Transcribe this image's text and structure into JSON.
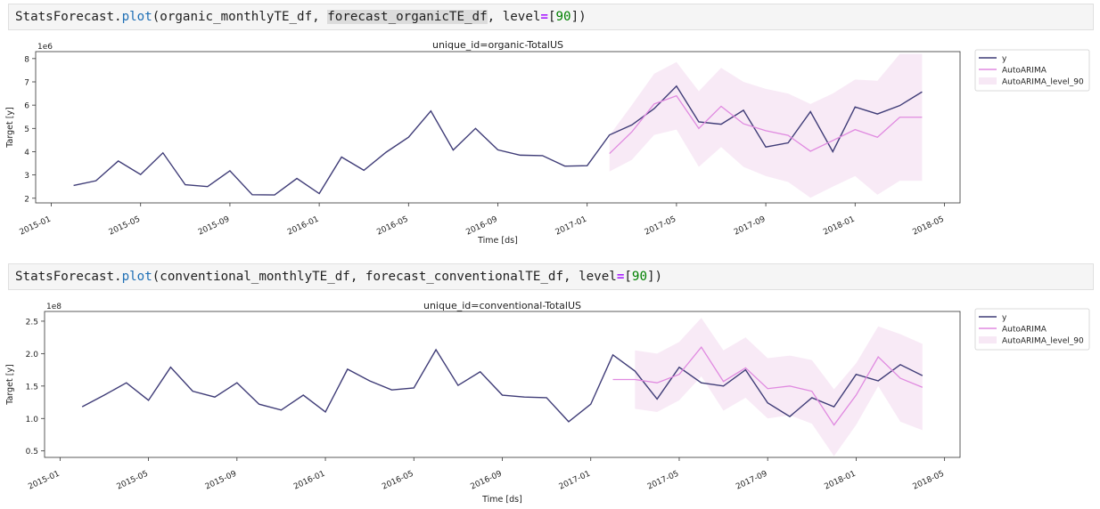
{
  "cells": [
    {
      "tokens": [
        {
          "t": "StatsForecast",
          "c": ""
        },
        {
          "t": ".",
          "c": ""
        },
        {
          "t": "plot",
          "c": "tok-fn"
        },
        {
          "t": "(organic_monthlyTE_df, ",
          "c": ""
        },
        {
          "t": "forecast_organicTE_df",
          "c": "tok-hl"
        },
        {
          "t": ", level",
          "c": ""
        },
        {
          "t": "=",
          "c": "tok-op"
        },
        {
          "t": "[",
          "c": ""
        },
        {
          "t": "90",
          "c": "tok-num"
        },
        {
          "t": "])",
          "c": ""
        }
      ]
    },
    {
      "tokens": [
        {
          "t": "StatsForecast",
          "c": ""
        },
        {
          "t": ".",
          "c": ""
        },
        {
          "t": "plot",
          "c": "tok-fn"
        },
        {
          "t": "(conventional_monthlyTE_df, forecast_conventionalTE_df, level",
          "c": ""
        },
        {
          "t": "=",
          "c": "tok-op"
        },
        {
          "t": "[",
          "c": ""
        },
        {
          "t": "90",
          "c": "tok-num"
        },
        {
          "t": "])",
          "c": ""
        }
      ]
    }
  ],
  "colors": {
    "y": "#3f3c77",
    "autoarima": "#e08ae0",
    "band": "#f7e8f5"
  },
  "chart_data": [
    {
      "type": "line",
      "title": "unique_id=organic-TotalUS",
      "xlabel": "Time [ds]",
      "ylabel": "Target [y]",
      "offset_text": "1e6",
      "x_ticks": [
        "2015-01",
        "2015-05",
        "2015-09",
        "2016-01",
        "2016-05",
        "2016-09",
        "2017-01",
        "2017-05",
        "2017-09",
        "2018-01",
        "2018-05"
      ],
      "y_ticks": [
        2,
        3,
        4,
        5,
        6,
        7,
        8
      ],
      "ylim": [
        1.8,
        8.3
      ],
      "grid": false,
      "legend": "outside-top-right",
      "series": [
        {
          "name": "y",
          "x": [
            "2015-02",
            "2015-03",
            "2015-04",
            "2015-05",
            "2015-06",
            "2015-07",
            "2015-08",
            "2015-09",
            "2015-10",
            "2015-11",
            "2015-12",
            "2016-01",
            "2016-02",
            "2016-03",
            "2016-04",
            "2016-05",
            "2016-06",
            "2016-07",
            "2016-08",
            "2016-09",
            "2016-10",
            "2016-11",
            "2016-12",
            "2017-01",
            "2017-02",
            "2017-03",
            "2017-04",
            "2017-05",
            "2017-06",
            "2017-07",
            "2017-08",
            "2017-09",
            "2017-10",
            "2017-11",
            "2017-12",
            "2018-01",
            "2018-02",
            "2018-03",
            "2018-04"
          ],
          "values": [
            2.55,
            2.75,
            3.6,
            3.02,
            3.95,
            2.58,
            2.5,
            3.18,
            2.15,
            2.14,
            2.85,
            2.2,
            3.77,
            3.2,
            3.98,
            4.62,
            5.75,
            4.07,
            5.0,
            4.08,
            3.85,
            3.83,
            3.38,
            3.4,
            4.72,
            5.15,
            5.85,
            6.82,
            5.28,
            5.18,
            5.78,
            4.2,
            4.38,
            5.72,
            4.0,
            5.92,
            5.62,
            5.98,
            6.57
          ]
        },
        {
          "name": "AutoARIMA",
          "x": [
            "2017-02",
            "2017-03",
            "2017-04",
            "2017-05",
            "2017-06",
            "2017-07",
            "2017-08",
            "2017-09",
            "2017-10",
            "2017-11",
            "2017-12",
            "2018-01",
            "2018-02",
            "2018-03",
            "2018-04"
          ],
          "values": [
            3.92,
            4.85,
            6.05,
            6.4,
            5.0,
            5.95,
            5.2,
            4.9,
            4.7,
            4.02,
            4.48,
            4.95,
            4.62,
            5.48,
            5.48
          ]
        },
        {
          "name": "AutoARIMA_level_90",
          "x": [
            "2017-02",
            "2017-03",
            "2017-04",
            "2017-05",
            "2017-06",
            "2017-07",
            "2017-08",
            "2017-09",
            "2017-10",
            "2017-11",
            "2017-12",
            "2018-01",
            "2018-02",
            "2018-03",
            "2018-04"
          ],
          "lower": [
            3.15,
            3.65,
            4.72,
            4.95,
            3.35,
            4.2,
            3.35,
            2.95,
            2.7,
            2.02,
            2.5,
            2.95,
            2.15,
            2.75,
            2.75
          ],
          "upper": [
            4.7,
            6.0,
            7.35,
            7.85,
            6.6,
            7.6,
            7.0,
            6.7,
            6.5,
            6.05,
            6.5,
            7.1,
            7.05,
            8.2,
            8.2
          ]
        }
      ]
    },
    {
      "type": "line",
      "title": "unique_id=conventional-TotalUS",
      "xlabel": "Time [ds]",
      "ylabel": "Target [y]",
      "offset_text": "1e8",
      "x_ticks": [
        "2015-01",
        "2015-05",
        "2015-09",
        "2016-01",
        "2016-05",
        "2016-09",
        "2017-01",
        "2017-05",
        "2017-09",
        "2018-01",
        "2018-05"
      ],
      "y_ticks": [
        0.5,
        1.0,
        1.5,
        2.0,
        2.5
      ],
      "ylim": [
        0.4,
        2.65
      ],
      "grid": false,
      "legend": "outside-top-right",
      "series": [
        {
          "name": "y",
          "x": [
            "2015-02",
            "2015-03",
            "2015-04",
            "2015-05",
            "2015-06",
            "2015-07",
            "2015-08",
            "2015-09",
            "2015-10",
            "2015-11",
            "2015-12",
            "2016-01",
            "2016-02",
            "2016-03",
            "2016-04",
            "2016-05",
            "2016-06",
            "2016-07",
            "2016-08",
            "2016-09",
            "2016-10",
            "2016-11",
            "2016-12",
            "2017-01",
            "2017-02",
            "2017-03",
            "2017-04",
            "2017-05",
            "2017-06",
            "2017-07",
            "2017-08",
            "2017-09",
            "2017-10",
            "2017-11",
            "2017-12",
            "2018-01",
            "2018-02",
            "2018-03",
            "2018-04"
          ],
          "values": [
            1.18,
            1.36,
            1.55,
            1.28,
            1.79,
            1.42,
            1.33,
            1.55,
            1.22,
            1.13,
            1.36,
            1.1,
            1.76,
            1.58,
            1.44,
            1.47,
            2.06,
            1.51,
            1.72,
            1.36,
            1.33,
            1.32,
            0.95,
            1.22,
            1.98,
            1.73,
            1.3,
            1.79,
            1.55,
            1.5,
            1.75,
            1.24,
            1.03,
            1.32,
            1.18,
            1.68,
            1.58,
            1.83,
            1.66
          ]
        },
        {
          "name": "AutoARIMA",
          "x": [
            "2017-02",
            "2017-03",
            "2017-04",
            "2017-05",
            "2017-06",
            "2017-07",
            "2017-08",
            "2017-09",
            "2017-10",
            "2017-11",
            "2017-12",
            "2018-01",
            "2018-02",
            "2018-03",
            "2018-04"
          ],
          "values": [
            1.6,
            1.6,
            1.55,
            1.68,
            2.1,
            1.57,
            1.78,
            1.46,
            1.5,
            1.42,
            0.9,
            1.36,
            1.95,
            1.62,
            1.48
          ],
          "start_index": 1
        },
        {
          "name": "AutoARIMA_level_90",
          "x": [
            "2017-03",
            "2017-04",
            "2017-05",
            "2017-06",
            "2017-07",
            "2017-08",
            "2017-09",
            "2017-10",
            "2017-11",
            "2017-12",
            "2018-01",
            "2018-02",
            "2018-03",
            "2018-04"
          ],
          "lower": [
            1.15,
            1.1,
            1.28,
            1.65,
            1.12,
            1.32,
            1.0,
            1.05,
            0.92,
            0.42,
            0.9,
            1.5,
            0.95,
            0.82
          ],
          "upper": [
            2.05,
            2.0,
            2.18,
            2.55,
            2.05,
            2.25,
            1.93,
            1.97,
            1.9,
            1.45,
            1.85,
            2.42,
            2.3,
            2.15
          ]
        }
      ]
    }
  ]
}
